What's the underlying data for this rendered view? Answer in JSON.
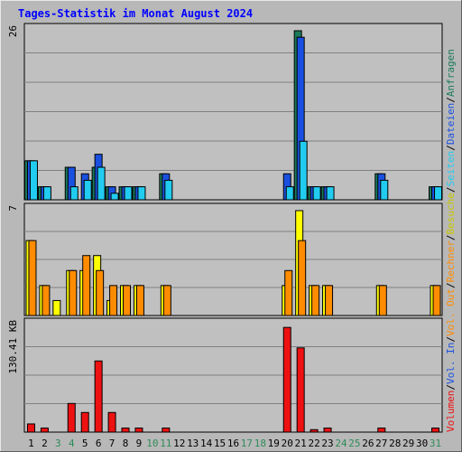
{
  "chart_data": {
    "type": "bar",
    "title": "Tages-Statistik im Monat August 2024",
    "days": [
      1,
      2,
      3,
      4,
      5,
      6,
      7,
      8,
      9,
      10,
      11,
      12,
      13,
      14,
      15,
      16,
      17,
      18,
      19,
      20,
      21,
      22,
      23,
      24,
      25,
      26,
      27,
      28,
      29,
      30,
      31
    ],
    "day_label_colors": {
      "weekday": "#000000",
      "weekend": "#2e8b57"
    },
    "weekend_days": [
      3,
      4,
      10,
      11,
      17,
      18,
      24,
      25,
      31
    ],
    "panels": [
      {
        "id": "hits",
        "axis_max_label": "26",
        "ymax": 26,
        "series": [
          {
            "name": "Anfragen",
            "color": "#1a7a5a",
            "values": [
              6,
              2,
              0,
              5,
              0,
              5,
              2,
              2,
              2,
              0,
              4,
              0,
              0,
              0,
              0,
              0,
              0,
              0,
              0,
              0,
              26,
              2,
              2,
              0,
              0,
              0,
              4,
              0,
              0,
              0,
              2
            ]
          },
          {
            "name": "Dateien",
            "color": "#1a50e0",
            "values": [
              6,
              2,
              0,
              5,
              4,
              7,
              2,
              2,
              2,
              0,
              4,
              0,
              0,
              0,
              0,
              0,
              0,
              0,
              0,
              4,
              25,
              2,
              2,
              0,
              0,
              0,
              4,
              0,
              0,
              0,
              2
            ]
          },
          {
            "name": "Seiten",
            "color": "#22ccf0",
            "values": [
              6,
              2,
              0,
              2,
              3,
              5,
              1,
              2,
              2,
              0,
              3,
              0,
              0,
              0,
              0,
              0,
              0,
              0,
              0,
              2,
              9,
              2,
              2,
              0,
              0,
              0,
              3,
              0,
              0,
              0,
              2
            ]
          }
        ]
      },
      {
        "id": "visits",
        "axis_max_label": "7",
        "ymax": 7,
        "series": [
          {
            "name": "Besuche",
            "color": "#ffff00",
            "values": [
              5,
              2,
              1,
              3,
              3,
              4,
              1,
              2,
              2,
              0,
              2,
              0,
              0,
              0,
              0,
              0,
              0,
              0,
              0,
              2,
              7,
              2,
              2,
              0,
              0,
              0,
              2,
              0,
              0,
              0,
              2
            ]
          },
          {
            "name": "Rechner",
            "color": "#ff8c00",
            "values": [
              5,
              2,
              0,
              3,
              4,
              3,
              2,
              2,
              2,
              0,
              2,
              0,
              0,
              0,
              0,
              0,
              0,
              0,
              0,
              3,
              5,
              2,
              2,
              0,
              0,
              0,
              2,
              0,
              0,
              0,
              2
            ]
          }
        ]
      },
      {
        "id": "volume",
        "axis_max_label": "130.41 KB",
        "ymax": 130.41,
        "series": [
          {
            "name": "Volumen",
            "color": "#ee1111",
            "values": [
              10,
              5,
              0,
              35,
              24,
              87,
              24,
              5,
              5,
              0,
              5,
              0,
              0,
              0,
              0,
              0,
              0,
              0,
              0,
              128,
              103,
              3,
              5,
              0,
              0,
              0,
              5,
              0,
              0,
              0,
              5
            ]
          }
        ]
      }
    ],
    "right_legend": [
      {
        "text": "Anfragen",
        "color": "#1a7a5a"
      },
      {
        "text": "/",
        "color": "#000000"
      },
      {
        "text": "Dateien",
        "color": "#1a50e0"
      },
      {
        "text": "/",
        "color": "#000000"
      },
      {
        "text": "Seiten",
        "color": "#22ccf0"
      },
      {
        "text": "/",
        "color": "#000000"
      },
      {
        "text": "Besuche",
        "color": "#c8c800"
      },
      {
        "text": "/",
        "color": "#000000"
      },
      {
        "text": "Rechner",
        "color": "#ff8c00"
      },
      {
        "text": "/",
        "color": "#000000"
      },
      {
        "text": "Vol. Out",
        "color": "#ff8c00"
      },
      {
        "text": "/",
        "color": "#000000"
      },
      {
        "text": "Vol. In",
        "color": "#1a50e0"
      },
      {
        "text": "/",
        "color": "#000000"
      },
      {
        "text": "Volumen",
        "color": "#ee1111"
      }
    ],
    "grid": true,
    "background": "#c0c0c0",
    "grid_color": "#808080",
    "title_color": "#0000ff"
  }
}
